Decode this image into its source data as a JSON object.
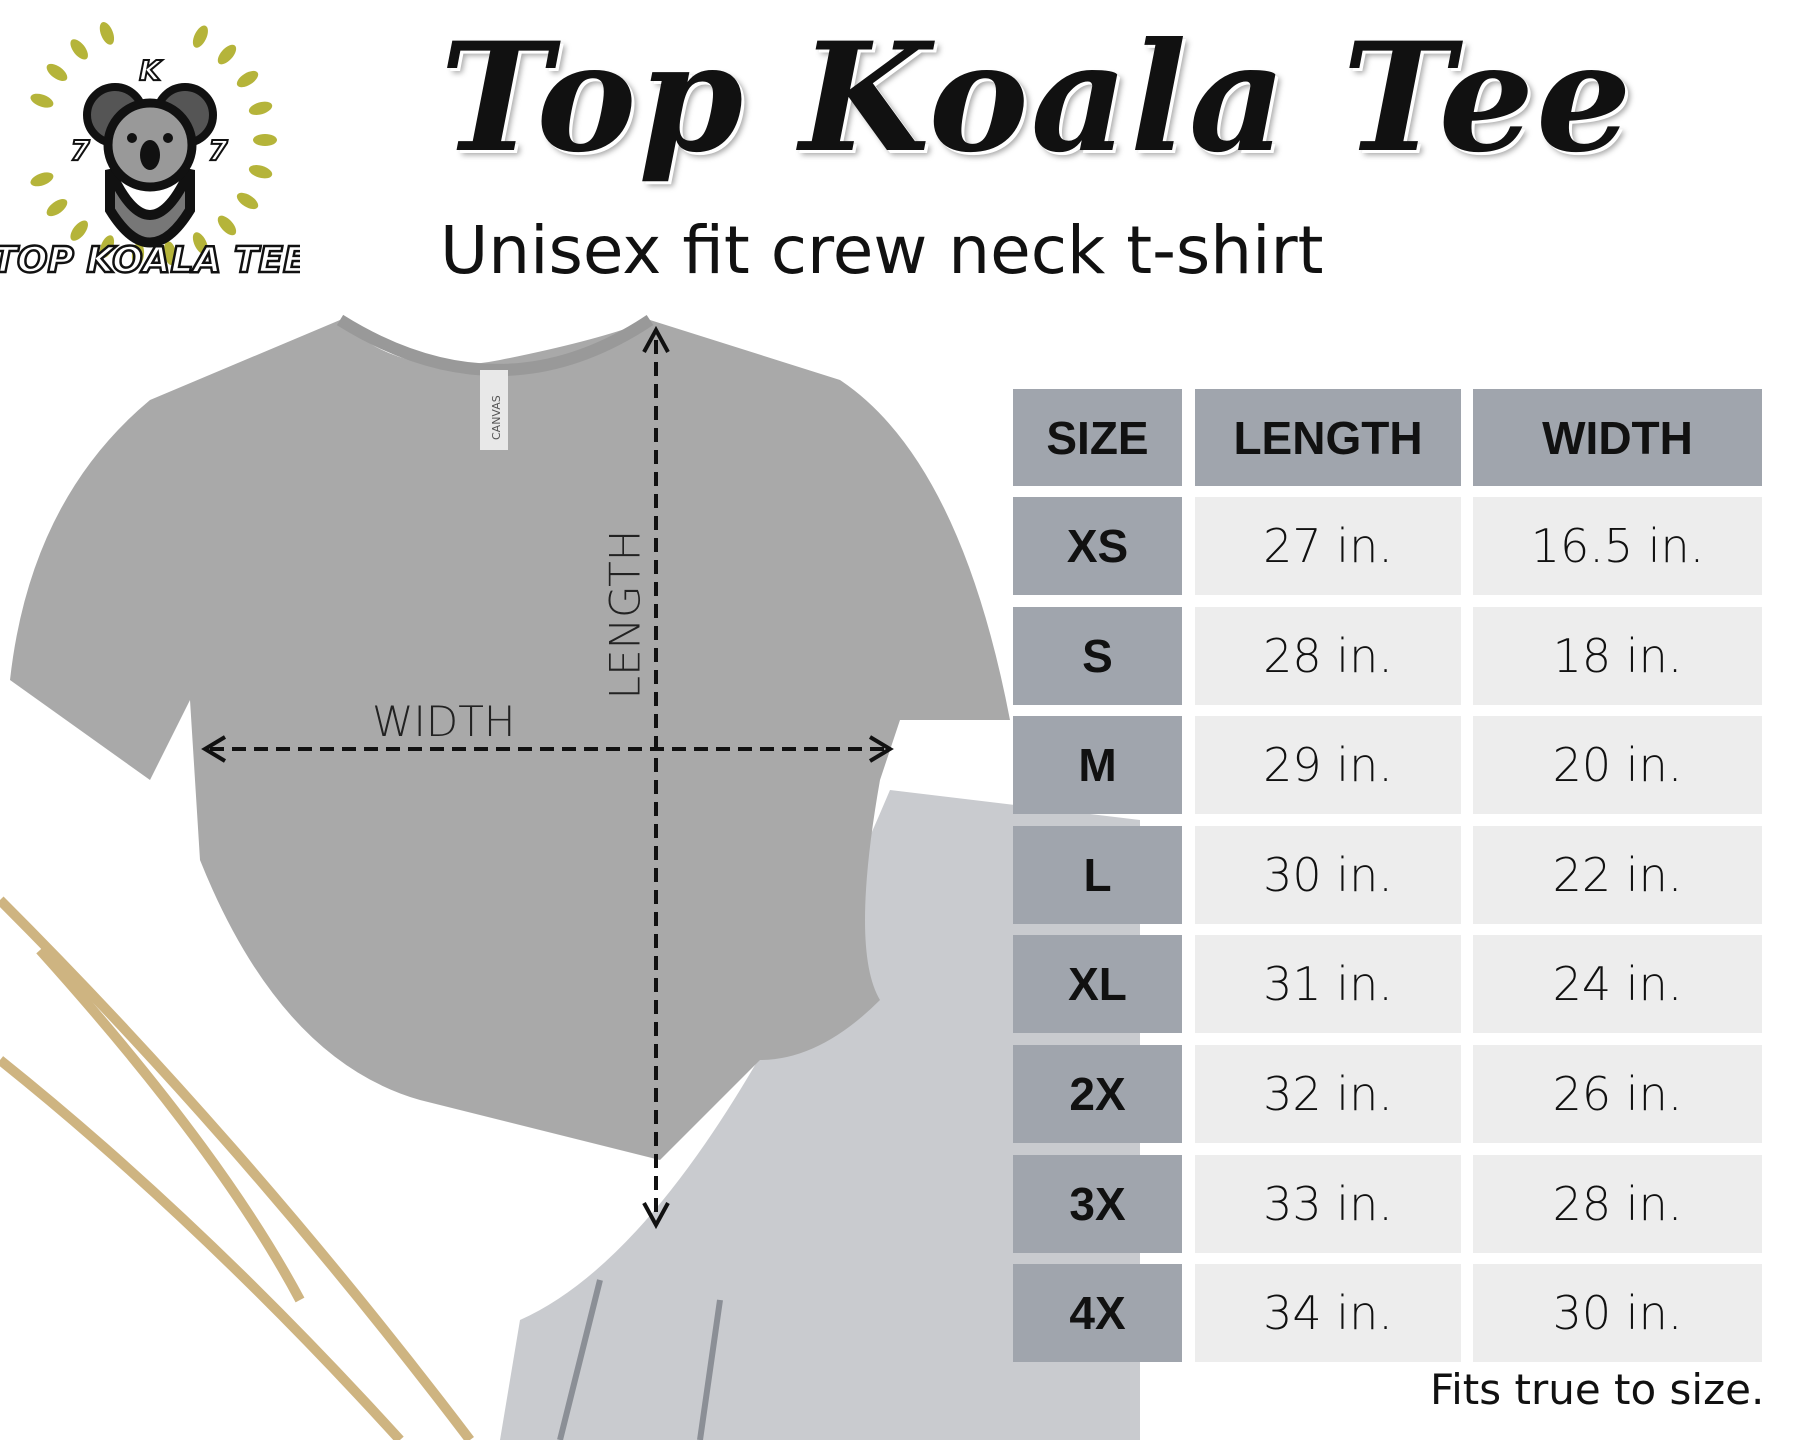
{
  "logo": {
    "text": "TOP KOALA TEE",
    "letters": [
      "K",
      "7",
      "7"
    ],
    "wreath_color": "#b5b43a"
  },
  "header": {
    "title": "Top Koala Tee",
    "subtitle": "Unisex fit crew neck t-shirt"
  },
  "diagram": {
    "width_label": "WIDTH",
    "length_label": "LENGTH",
    "shirt_tag": "CANVAS"
  },
  "table": {
    "columns": [
      "SIZE",
      "LENGTH",
      "WIDTH"
    ],
    "rows": [
      {
        "size": "XS",
        "length": "27 in.",
        "width": "16.5 in."
      },
      {
        "size": "S",
        "length": "28 in.",
        "width": "18 in."
      },
      {
        "size": "M",
        "length": "29 in.",
        "width": "20 in."
      },
      {
        "size": "L",
        "length": "30 in.",
        "width": "22 in."
      },
      {
        "size": "XL",
        "length": "31 in.",
        "width": "24 in."
      },
      {
        "size": "2X",
        "length": "32 in.",
        "width": "26 in."
      },
      {
        "size": "3X",
        "length": "33 in.",
        "width": "28 in."
      },
      {
        "size": "4X",
        "length": "34 in.",
        "width": "30 in."
      }
    ],
    "header_color": "#a0a5ad",
    "cell_color": "#ededed"
  },
  "footer": {
    "note": "Fits true to size."
  }
}
